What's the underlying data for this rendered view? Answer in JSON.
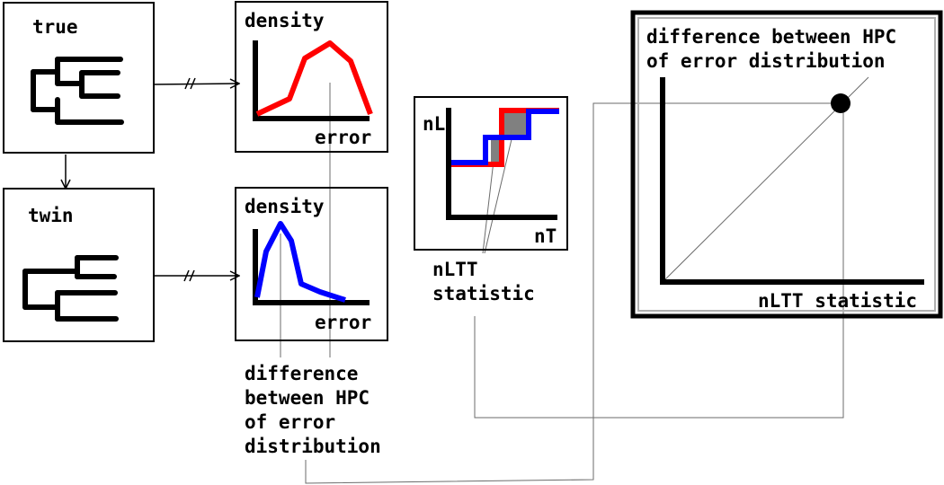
{
  "panels": {
    "true_tree": {
      "label": "true"
    },
    "twin_tree": {
      "label": "twin"
    },
    "true_density": {
      "ylabel": "density",
      "xlabel": "error"
    },
    "twin_density": {
      "ylabel": "density",
      "xlabel": "error"
    },
    "nltt_plot": {
      "ylabel": "nL",
      "xlabel": "nT"
    },
    "result_plot": {
      "title_line1": "difference between HPC",
      "title_line2": "of error distribution",
      "xlabel": "nLTT statistic"
    }
  },
  "annotations": {
    "nltt": {
      "line1": "nLTT",
      "line2": "statistic"
    },
    "hpc": {
      "line1": "difference",
      "line2": "between HPC",
      "line3": "of error",
      "line4": "distribution"
    }
  },
  "colors": {
    "true_series": "#ff0000",
    "twin_series": "#0000ff",
    "nltt_area": "#808080",
    "result_point": "#000000"
  }
}
